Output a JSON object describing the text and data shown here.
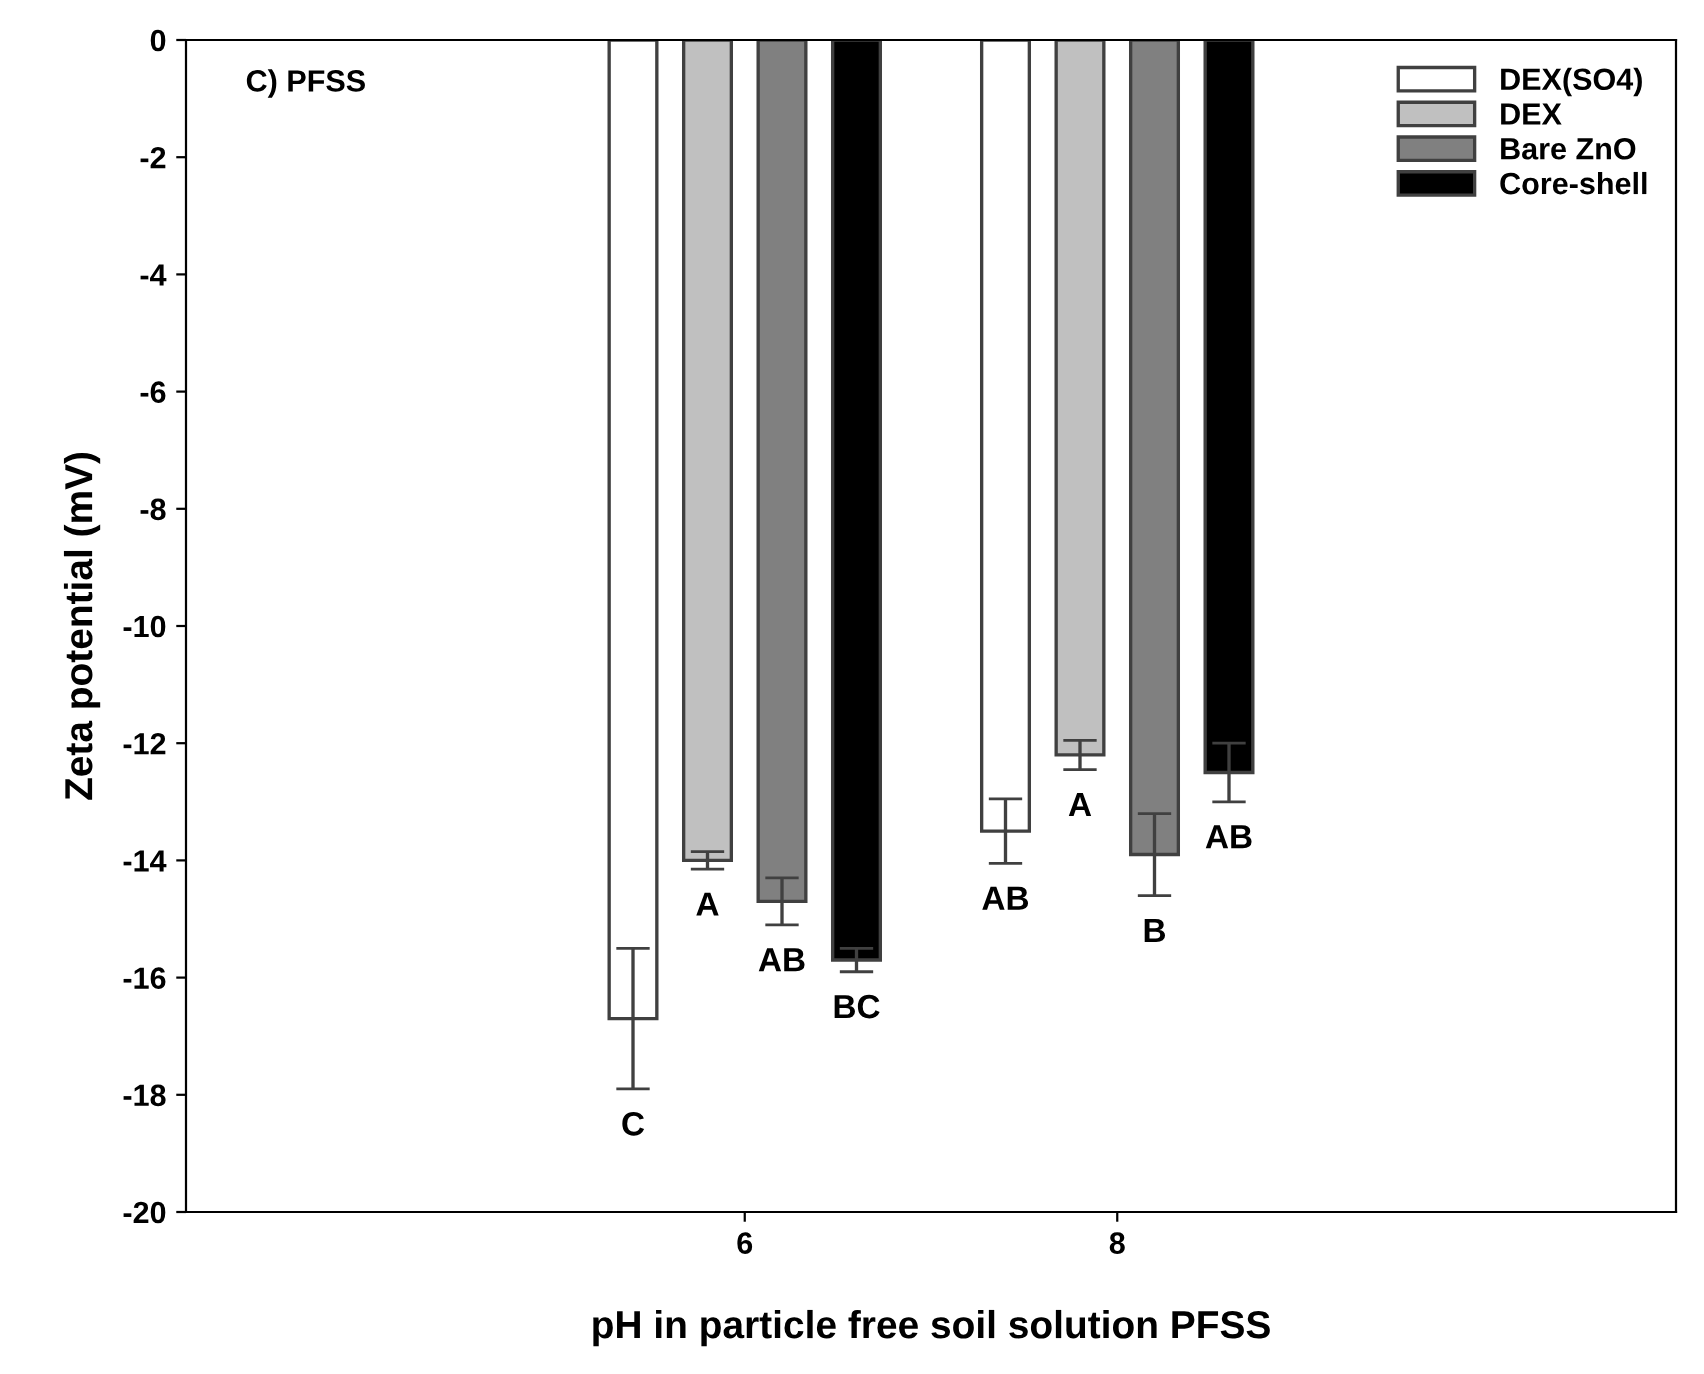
{
  "chart_data": {
    "type": "bar",
    "title": "C) PFSS",
    "xlabel": "pH in particle free soil solution PFSS",
    "ylabel": "Zeta potential (mV)",
    "categories": [
      "6",
      "8"
    ],
    "series": [
      {
        "name": "DEX(SO4)",
        "color": "#ffffff",
        "values": [
          -16.7,
          -13.5
        ],
        "errors": [
          1.2,
          0.55
        ],
        "value_labels": [
          "C",
          "AB"
        ]
      },
      {
        "name": "DEX",
        "color": "#c0c0c0",
        "values": [
          -14.0,
          -12.2
        ],
        "errors": [
          0.15,
          0.25
        ],
        "value_labels": [
          "A",
          "A"
        ]
      },
      {
        "name": "Bare ZnO",
        "color": "#808080",
        "values": [
          -14.7,
          -13.9
        ],
        "errors": [
          0.4,
          0.7
        ],
        "value_labels": [
          "AB",
          "B"
        ]
      },
      {
        "name": "Core-shell",
        "color": "#000000",
        "values": [
          -15.7,
          -12.5
        ],
        "errors": [
          0.2,
          0.5
        ],
        "value_labels": [
          "BC",
          "AB"
        ]
      }
    ],
    "ylim": [
      -20,
      0
    ],
    "yticks": [
      -20,
      -18,
      -16,
      -14,
      -12,
      -10,
      -8,
      -6,
      -4,
      -2,
      0
    ],
    "grid": false,
    "legend": "top right"
  }
}
